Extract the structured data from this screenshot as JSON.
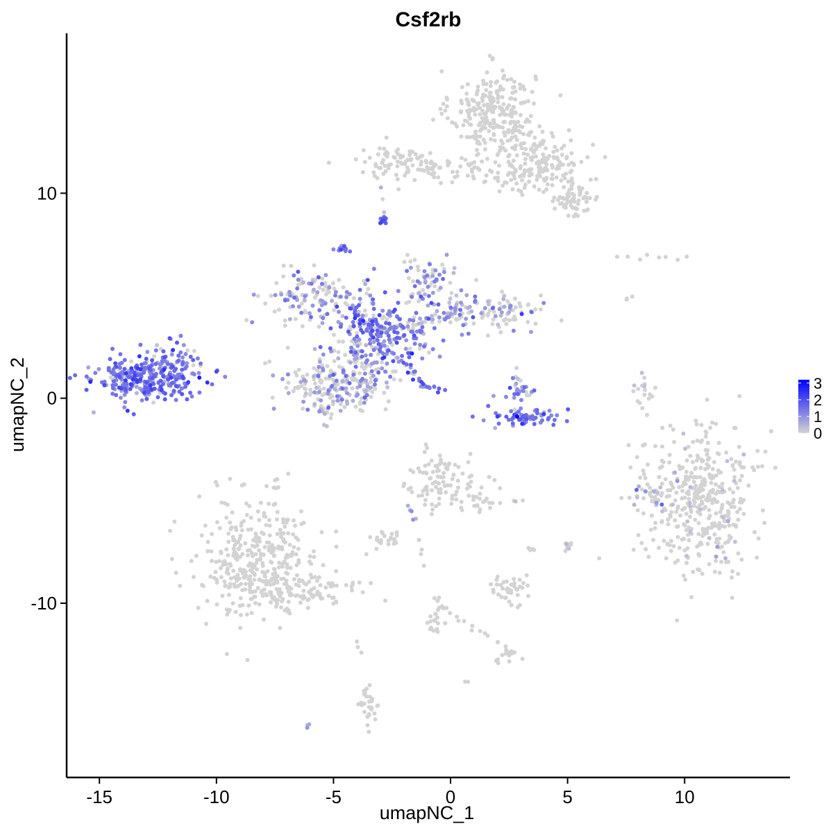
{
  "chart_data": {
    "type": "scatter",
    "title": "Csf2rb",
    "xlabel": "umapNC_1",
    "ylabel": "umapNC_2",
    "xlim": [
      -16.4,
      14.5
    ],
    "ylim": [
      -18.5,
      17.8
    ],
    "x_ticks": [
      -15,
      -10,
      -5,
      0,
      5,
      10
    ],
    "x_tick_labels": [
      "-15",
      "-10",
      "-5",
      "0",
      "5",
      "10"
    ],
    "y_ticks": [
      -10,
      0,
      10
    ],
    "y_tick_labels": [
      "-10",
      "0",
      "10"
    ],
    "grid": false,
    "legend_position": "right",
    "color_scale": {
      "low_color": "#d3d3d3",
      "high_color": "#0000ff",
      "min": 0,
      "max": 3.2,
      "ticks": [
        0,
        1,
        2,
        3
      ],
      "tick_labels": [
        "0",
        "1",
        "2",
        "3"
      ]
    },
    "clusters": [
      {
        "cx": 1.8,
        "cy": 14.0,
        "sx": 0.9,
        "sy": 1.0,
        "n": 260,
        "expr_mean": 0,
        "expr_frac": 0.02
      },
      {
        "cx": 3.8,
        "cy": 11.5,
        "sx": 1.1,
        "sy": 0.8,
        "n": 170,
        "expr_mean": 0,
        "expr_frac": 0.02
      },
      {
        "cx": 5.2,
        "cy": 9.8,
        "sx": 0.6,
        "sy": 0.5,
        "n": 70,
        "expr_mean": 0,
        "expr_frac": 0.0
      },
      {
        "cx": -2.0,
        "cy": 11.5,
        "sx": 1.1,
        "sy": 0.4,
        "n": 90,
        "expr_mean": 0,
        "expr_frac": 0.0
      },
      {
        "cx": 0.5,
        "cy": 11.1,
        "sx": 1.2,
        "sy": 0.3,
        "n": 40,
        "expr_mean": 0,
        "expr_frac": 0.0
      },
      {
        "cx": -2.9,
        "cy": 8.6,
        "sx": 0.12,
        "sy": 0.12,
        "n": 14,
        "expr_mean": 1.8,
        "expr_frac": 1.0
      },
      {
        "cx": -4.6,
        "cy": 7.3,
        "sx": 0.15,
        "sy": 0.15,
        "n": 12,
        "expr_mean": 1.3,
        "expr_frac": 0.9
      },
      {
        "cx": -3.0,
        "cy": 3.2,
        "sx": 1.1,
        "sy": 0.8,
        "n": 230,
        "expr_mean": 1.3,
        "expr_frac": 0.75
      },
      {
        "cx": -6.0,
        "cy": 4.9,
        "sx": 1.0,
        "sy": 0.7,
        "n": 110,
        "expr_mean": 1.0,
        "expr_frac": 0.5
      },
      {
        "cx": -1.0,
        "cy": 5.7,
        "sx": 0.5,
        "sy": 0.6,
        "n": 60,
        "expr_mean": 1.1,
        "expr_frac": 0.6
      },
      {
        "cx": 1.5,
        "cy": 4.2,
        "sx": 1.2,
        "sy": 0.5,
        "n": 120,
        "expr_mean": 0.8,
        "expr_frac": 0.45
      },
      {
        "cx": -5.2,
        "cy": 0.6,
        "sx": 1.0,
        "sy": 0.7,
        "n": 180,
        "expr_mean": 0.8,
        "expr_frac": 0.4
      },
      {
        "cx": -3.5,
        "cy": 1.0,
        "sx": 0.6,
        "sy": 0.8,
        "n": 80,
        "expr_mean": 1.0,
        "expr_frac": 0.5
      },
      {
        "cx": -13.0,
        "cy": 1.0,
        "sx": 1.1,
        "sy": 0.55,
        "n": 300,
        "expr_mean": 1.4,
        "expr_frac": 0.9
      },
      {
        "cx": -11.7,
        "cy": 2.0,
        "sx": 0.5,
        "sy": 0.5,
        "n": 40,
        "expr_mean": 1.2,
        "expr_frac": 0.8
      },
      {
        "cx": 3.0,
        "cy": 0.5,
        "sx": 0.3,
        "sy": 0.4,
        "n": 30,
        "expr_mean": 1.2,
        "expr_frac": 0.7
      },
      {
        "cx": 3.3,
        "cy": -0.9,
        "sx": 0.9,
        "sy": 0.2,
        "n": 70,
        "expr_mean": 1.4,
        "expr_frac": 0.9
      },
      {
        "cx": 8.3,
        "cy": 0.3,
        "sx": 0.2,
        "sy": 0.5,
        "n": 18,
        "expr_mean": 0.3,
        "expr_frac": 0.2
      },
      {
        "cx": 10.7,
        "cy": -5.0,
        "sx": 1.3,
        "sy": 1.7,
        "n": 420,
        "expr_mean": 0.1,
        "expr_frac": 0.06
      },
      {
        "cx": 8.5,
        "cy": -4.6,
        "sx": 0.35,
        "sy": 0.3,
        "n": 25,
        "expr_mean": 0.6,
        "expr_frac": 0.4
      },
      {
        "cx": -8.2,
        "cy": -8.0,
        "sx": 1.3,
        "sy": 1.6,
        "n": 380,
        "expr_mean": 0,
        "expr_frac": 0.01
      },
      {
        "cx": -6.0,
        "cy": -9.5,
        "sx": 1.2,
        "sy": 0.4,
        "n": 70,
        "expr_mean": 0,
        "expr_frac": 0.0
      },
      {
        "cx": -0.6,
        "cy": -4.0,
        "sx": 0.6,
        "sy": 0.7,
        "n": 90,
        "expr_mean": 0,
        "expr_frac": 0.02
      },
      {
        "cx": 1.2,
        "cy": -4.8,
        "sx": 0.4,
        "sy": 0.6,
        "n": 30,
        "expr_mean": 0,
        "expr_frac": 0.0
      },
      {
        "cx": -2.7,
        "cy": -6.8,
        "sx": 0.3,
        "sy": 0.2,
        "n": 25,
        "expr_mean": 0,
        "expr_frac": 0.0
      },
      {
        "cx": 2.6,
        "cy": -9.3,
        "sx": 0.4,
        "sy": 0.4,
        "n": 40,
        "expr_mean": 0,
        "expr_frac": 0.0
      },
      {
        "cx": -0.6,
        "cy": -10.8,
        "sx": 0.2,
        "sy": 0.6,
        "n": 20,
        "expr_mean": 0,
        "expr_frac": 0.0
      },
      {
        "cx": 2.3,
        "cy": -12.5,
        "sx": 0.3,
        "sy": 0.15,
        "n": 14,
        "expr_mean": 0,
        "expr_frac": 0.0
      },
      {
        "cx": -3.5,
        "cy": -15.0,
        "sx": 0.25,
        "sy": 0.6,
        "n": 30,
        "expr_mean": 0,
        "expr_frac": 0.0
      },
      {
        "cx": 5.0,
        "cy": -7.2,
        "sx": 0.12,
        "sy": 0.12,
        "n": 8,
        "expr_mean": 0.2,
        "expr_frac": 0.3
      }
    ],
    "streaks": [
      {
        "x0": -3.6,
        "y0": 5.8,
        "x1": -3.0,
        "y1": 3.2,
        "n": 18,
        "expr_mean": 1.2,
        "expr_frac": 0.8
      },
      {
        "x0": -2.0,
        "y0": 1.8,
        "x1": -1.2,
        "y1": 0.6,
        "n": 18,
        "expr_mean": 1.3,
        "expr_frac": 0.9
      },
      {
        "x0": -1.2,
        "y0": 0.6,
        "x1": -0.3,
        "y1": 0.4,
        "n": 10,
        "expr_mean": 1.3,
        "expr_frac": 0.9
      },
      {
        "x0": -5.5,
        "y0": 5.8,
        "x1": -3.0,
        "y1": 3.2,
        "n": 20,
        "expr_mean": 1.1,
        "expr_frac": 0.6
      },
      {
        "x0": -3.0,
        "y0": 3.2,
        "x1": 0.5,
        "y1": 4.2,
        "n": 24,
        "expr_mean": 0.9,
        "expr_frac": 0.5
      },
      {
        "x0": -6.0,
        "y0": 5.6,
        "x1": -5.8,
        "y1": 5.9,
        "n": 6,
        "expr_mean": 0.5,
        "expr_frac": 0.3
      },
      {
        "x0": 7.2,
        "y0": 6.8,
        "x1": 10.0,
        "y1": 6.9,
        "n": 8,
        "expr_mean": 0,
        "expr_frac": 0.0
      },
      {
        "x0": 7.5,
        "y0": 4.7,
        "x1": 7.8,
        "y1": 4.9,
        "n": 3,
        "expr_mean": 0,
        "expr_frac": 0.0
      },
      {
        "x0": -0.6,
        "y0": -10.0,
        "x1": 2.5,
        "y1": -12.3,
        "n": 16,
        "expr_mean": 0,
        "expr_frac": 0.0
      },
      {
        "x0": -3.9,
        "y0": -11.8,
        "x1": -3.8,
        "y1": -12.4,
        "n": 3,
        "expr_mean": 0,
        "expr_frac": 0.0
      },
      {
        "x0": -1.3,
        "y0": -7.0,
        "x1": -1.2,
        "y1": -8.0,
        "n": 4,
        "expr_mean": 0,
        "expr_frac": 0.0
      },
      {
        "x0": 0.7,
        "y0": -13.8,
        "x1": 0.8,
        "y1": -13.9,
        "n": 2,
        "expr_mean": 0,
        "expr_frac": 0.0
      },
      {
        "x0": -6.1,
        "y0": -16.0,
        "x1": -6.0,
        "y1": -15.9,
        "n": 3,
        "expr_mean": 0.3,
        "expr_frac": 0.3
      },
      {
        "x0": 3.3,
        "y0": -7.5,
        "x1": 3.5,
        "y1": -7.3,
        "n": 4,
        "expr_mean": 0,
        "expr_frac": 0.0
      },
      {
        "x0": 2.7,
        "y0": -5.0,
        "x1": 2.9,
        "y1": -5.0,
        "n": 3,
        "expr_mean": 0.3,
        "expr_frac": 0.5
      },
      {
        "x0": -1.8,
        "y0": -5.2,
        "x1": -1.5,
        "y1": -6.0,
        "n": 5,
        "expr_mean": 0.8,
        "expr_frac": 0.6
      },
      {
        "x0": -2.9,
        "y0": 10.3,
        "x1": -2.9,
        "y1": 9.0,
        "n": 3,
        "expr_mean": 0.6,
        "expr_frac": 0.5
      }
    ]
  }
}
